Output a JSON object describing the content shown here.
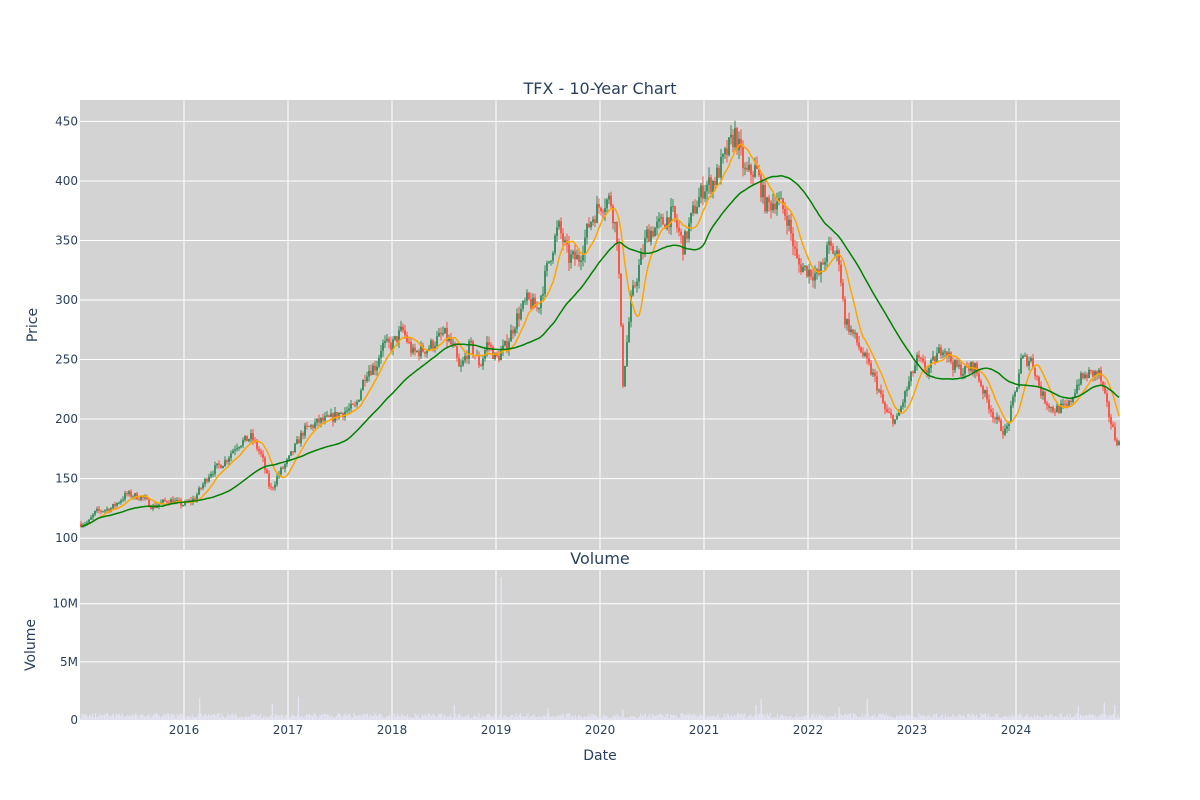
{
  "chart_data": [
    {
      "type": "candlestick",
      "title": "TFX - 10-Year Chart",
      "ylabel": "Price",
      "ylim": [
        90,
        468
      ],
      "xlim": [
        2015.0,
        2025.0
      ],
      "yticks": [
        100,
        150,
        200,
        250,
        300,
        350,
        400,
        450
      ],
      "xtick_positions": [
        2016,
        2017,
        2018,
        2019,
        2020,
        2021,
        2022,
        2023,
        2024
      ],
      "background": "#d3d3d3",
      "grid": true,
      "colors": {
        "up": "#2e8b57",
        "down": "#ff4b3e",
        "ma_short": "#ffa500",
        "ma_long": "#008000"
      },
      "price_anchors": [
        [
          2015.0,
          112
        ],
        [
          2015.08,
          113
        ],
        [
          2015.15,
          122
        ],
        [
          2015.3,
          125
        ],
        [
          2015.45,
          137
        ],
        [
          2015.6,
          134
        ],
        [
          2015.7,
          126
        ],
        [
          2015.85,
          132
        ],
        [
          2016.0,
          128
        ],
        [
          2016.1,
          133
        ],
        [
          2016.25,
          155
        ],
        [
          2016.4,
          165
        ],
        [
          2016.5,
          178
        ],
        [
          2016.65,
          185
        ],
        [
          2016.75,
          168
        ],
        [
          2016.83,
          140
        ],
        [
          2016.92,
          155
        ],
        [
          2017.0,
          165
        ],
        [
          2017.15,
          190
        ],
        [
          2017.3,
          198
        ],
        [
          2017.4,
          200
        ],
        [
          2017.5,
          205
        ],
        [
          2017.65,
          210
        ],
        [
          2017.75,
          240
        ],
        [
          2017.85,
          245
        ],
        [
          2017.9,
          262
        ],
        [
          2018.0,
          262
        ],
        [
          2018.1,
          275
        ],
        [
          2018.2,
          255
        ],
        [
          2018.35,
          260
        ],
        [
          2018.5,
          272
        ],
        [
          2018.6,
          258
        ],
        [
          2018.65,
          240
        ],
        [
          2018.75,
          262
        ],
        [
          2018.85,
          245
        ],
        [
          2018.92,
          265
        ],
        [
          2019.0,
          250
        ],
        [
          2019.1,
          262
        ],
        [
          2019.2,
          285
        ],
        [
          2019.3,
          300
        ],
        [
          2019.4,
          292
        ],
        [
          2019.5,
          330
        ],
        [
          2019.6,
          362
        ],
        [
          2019.7,
          335
        ],
        [
          2019.8,
          335
        ],
        [
          2019.9,
          365
        ],
        [
          2020.0,
          380
        ],
        [
          2020.1,
          385
        ],
        [
          2020.17,
          350
        ],
        [
          2020.22,
          230
        ],
        [
          2020.3,
          300
        ],
        [
          2020.45,
          355
        ],
        [
          2020.6,
          365
        ],
        [
          2020.7,
          372
        ],
        [
          2020.8,
          345
        ],
        [
          2020.9,
          375
        ],
        [
          2021.0,
          395
        ],
        [
          2021.1,
          400
        ],
        [
          2021.2,
          420
        ],
        [
          2021.3,
          440
        ],
        [
          2021.4,
          405
        ],
        [
          2021.5,
          410
        ],
        [
          2021.6,
          378
        ],
        [
          2021.7,
          385
        ],
        [
          2021.8,
          370
        ],
        [
          2021.9,
          330
        ],
        [
          2022.0,
          325
        ],
        [
          2022.1,
          320
        ],
        [
          2022.2,
          345
        ],
        [
          2022.3,
          335
        ],
        [
          2022.35,
          285
        ],
        [
          2022.45,
          268
        ],
        [
          2022.55,
          250
        ],
        [
          2022.65,
          232
        ],
        [
          2022.75,
          205
        ],
        [
          2022.85,
          198
        ],
        [
          2022.95,
          225
        ],
        [
          2023.05,
          250
        ],
        [
          2023.15,
          240
        ],
        [
          2023.3,
          262
        ],
        [
          2023.4,
          245
        ],
        [
          2023.5,
          240
        ],
        [
          2023.6,
          245
        ],
        [
          2023.7,
          220
        ],
        [
          2023.8,
          200
        ],
        [
          2023.9,
          188
        ],
        [
          2024.0,
          225
        ],
        [
          2024.05,
          250
        ],
        [
          2024.15,
          250
        ],
        [
          2024.25,
          220
        ],
        [
          2024.35,
          208
        ],
        [
          2024.5,
          210
        ],
        [
          2024.6,
          232
        ],
        [
          2024.7,
          238
        ],
        [
          2024.8,
          238
        ],
        [
          2024.88,
          208
        ],
        [
          2024.95,
          185
        ],
        [
          2025.0,
          178
        ]
      ]
    },
    {
      "type": "bar",
      "title": "Volume",
      "xlabel": "Date",
      "ylabel": "Volume",
      "ylim": [
        0,
        12900000
      ],
      "yticks": [
        0,
        5000000,
        10000000
      ],
      "ytick_labels": [
        "0",
        "5M",
        "10M"
      ],
      "xlim": [
        2015.0,
        2025.0
      ],
      "xtick_positions": [
        2016,
        2017,
        2018,
        2019,
        2020,
        2021,
        2022,
        2023,
        2024
      ],
      "xtick_labels": [
        "2016",
        "2017",
        "2018",
        "2019",
        "2020",
        "2021",
        "2022",
        "2023",
        "2024"
      ],
      "background": "#d3d3d3",
      "bar_color": "#e4e4f4",
      "base_volume": 350000,
      "volume_spikes": [
        [
          2016.15,
          1900000
        ],
        [
          2016.85,
          1400000
        ],
        [
          2017.1,
          2000000
        ],
        [
          2018.6,
          1300000
        ],
        [
          2019.05,
          12300000
        ],
        [
          2019.5,
          1000000
        ],
        [
          2020.22,
          900000
        ],
        [
          2021.5,
          1300000
        ],
        [
          2021.55,
          1800000
        ],
        [
          2022.3,
          1100000
        ],
        [
          2022.57,
          1800000
        ],
        [
          2024.6,
          1200000
        ],
        [
          2024.85,
          1500000
        ],
        [
          2024.95,
          1300000
        ]
      ]
    }
  ]
}
